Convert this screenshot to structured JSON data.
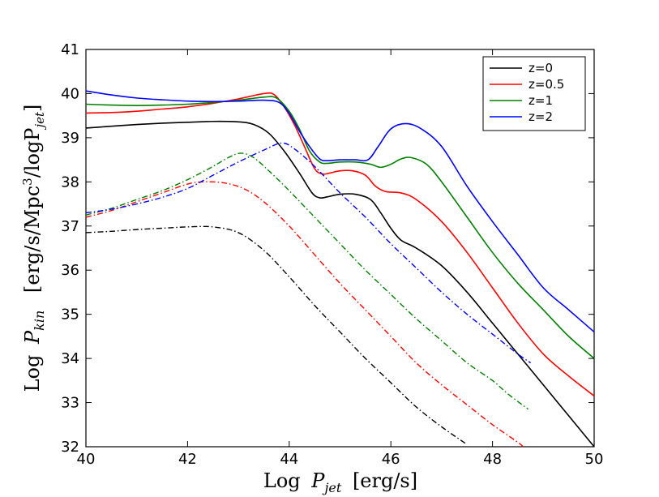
{
  "chart_data": {
    "type": "line",
    "title": "",
    "xlabel": {
      "prefix": "Log",
      "var": "P",
      "sub": "jet",
      "units": "[erg/s]"
    },
    "ylabel": {
      "prefix": "Log",
      "var": "P",
      "sub": "kin",
      "units_a": "[erg/s/Mpc",
      "sup": "3",
      "units_b": "/logP",
      "units_sub": "jet",
      "units_c": "]"
    },
    "xlim": [
      40,
      50
    ],
    "ylim": [
      32,
      41
    ],
    "xticks": [
      "40",
      "42",
      "44",
      "46",
      "48",
      "50"
    ],
    "yticks": [
      "32",
      "33",
      "34",
      "35",
      "36",
      "37",
      "38",
      "39",
      "40",
      "41"
    ],
    "legend_position": "top-right",
    "series": [
      {
        "name": "z=0",
        "color": "#000000",
        "style": "solid",
        "points": [
          [
            40,
            39.22
          ],
          [
            40.5,
            39.26
          ],
          [
            41,
            39.3
          ],
          [
            41.5,
            39.33
          ],
          [
            42,
            39.35
          ],
          [
            42.5,
            39.37
          ],
          [
            43,
            39.36
          ],
          [
            43.3,
            39.3
          ],
          [
            43.6,
            39.1
          ],
          [
            43.9,
            38.7
          ],
          [
            44.2,
            38.2
          ],
          [
            44.45,
            37.75
          ],
          [
            44.6,
            37.64
          ],
          [
            44.75,
            37.66
          ],
          [
            45,
            37.72
          ],
          [
            45.3,
            37.72
          ],
          [
            45.6,
            37.6
          ],
          [
            45.8,
            37.3
          ],
          [
            46,
            36.95
          ],
          [
            46.2,
            36.68
          ],
          [
            46.5,
            36.5
          ],
          [
            47,
            36.1
          ],
          [
            47.5,
            35.5
          ],
          [
            48,
            34.8
          ],
          [
            48.5,
            34.1
          ],
          [
            49,
            33.4
          ],
          [
            49.5,
            32.7
          ],
          [
            50,
            32.0
          ]
        ]
      },
      {
        "name": "z=0.5",
        "color": "#ff0000",
        "style": "solid",
        "points": [
          [
            40,
            39.56
          ],
          [
            40.5,
            39.57
          ],
          [
            41,
            39.6
          ],
          [
            41.5,
            39.65
          ],
          [
            42,
            39.7
          ],
          [
            42.5,
            39.78
          ],
          [
            43,
            39.88
          ],
          [
            43.5,
            40.0
          ],
          [
            43.7,
            39.98
          ],
          [
            43.9,
            39.7
          ],
          [
            44.1,
            39.3
          ],
          [
            44.3,
            38.8
          ],
          [
            44.5,
            38.3
          ],
          [
            44.65,
            38.18
          ],
          [
            44.8,
            38.2
          ],
          [
            45,
            38.25
          ],
          [
            45.25,
            38.25
          ],
          [
            45.5,
            38.15
          ],
          [
            45.7,
            37.9
          ],
          [
            45.9,
            37.78
          ],
          [
            46.2,
            37.75
          ],
          [
            46.5,
            37.6
          ],
          [
            47,
            37.1
          ],
          [
            47.5,
            36.4
          ],
          [
            48,
            35.6
          ],
          [
            48.5,
            34.8
          ],
          [
            49,
            34.1
          ],
          [
            49.5,
            33.6
          ],
          [
            50,
            33.15
          ]
        ]
      },
      {
        "name": "z=1",
        "color": "#008000",
        "style": "solid",
        "points": [
          [
            40,
            39.76
          ],
          [
            40.5,
            39.74
          ],
          [
            41,
            39.73
          ],
          [
            41.5,
            39.74
          ],
          [
            42,
            39.76
          ],
          [
            42.5,
            39.8
          ],
          [
            43,
            39.85
          ],
          [
            43.5,
            39.92
          ],
          [
            43.75,
            39.9
          ],
          [
            44,
            39.6
          ],
          [
            44.2,
            39.2
          ],
          [
            44.4,
            38.7
          ],
          [
            44.6,
            38.45
          ],
          [
            44.75,
            38.42
          ],
          [
            45,
            38.45
          ],
          [
            45.3,
            38.45
          ],
          [
            45.6,
            38.4
          ],
          [
            45.8,
            38.33
          ],
          [
            46,
            38.4
          ],
          [
            46.2,
            38.52
          ],
          [
            46.4,
            38.55
          ],
          [
            46.7,
            38.4
          ],
          [
            47,
            38.0
          ],
          [
            47.5,
            37.2
          ],
          [
            48,
            36.4
          ],
          [
            48.5,
            35.7
          ],
          [
            49,
            35.1
          ],
          [
            49.5,
            34.5
          ],
          [
            50,
            34.0
          ]
        ]
      },
      {
        "name": "z=2",
        "color": "#0000ff",
        "style": "solid",
        "points": [
          [
            40,
            40.06
          ],
          [
            40.5,
            39.97
          ],
          [
            41,
            39.9
          ],
          [
            41.5,
            39.86
          ],
          [
            42,
            39.83
          ],
          [
            42.5,
            39.82
          ],
          [
            43,
            39.83
          ],
          [
            43.5,
            39.85
          ],
          [
            43.8,
            39.8
          ],
          [
            44,
            39.55
          ],
          [
            44.2,
            39.15
          ],
          [
            44.4,
            38.8
          ],
          [
            44.6,
            38.52
          ],
          [
            44.75,
            38.48
          ],
          [
            45,
            38.5
          ],
          [
            45.3,
            38.5
          ],
          [
            45.55,
            38.5
          ],
          [
            45.75,
            38.8
          ],
          [
            46,
            39.2
          ],
          [
            46.3,
            39.32
          ],
          [
            46.6,
            39.2
          ],
          [
            47,
            38.8
          ],
          [
            47.5,
            37.9
          ],
          [
            48,
            37.1
          ],
          [
            48.5,
            36.35
          ],
          [
            49,
            35.6
          ],
          [
            49.5,
            35.1
          ],
          [
            50,
            34.6
          ]
        ]
      },
      {
        "name": "",
        "color": "#000000",
        "style": "dashdot",
        "points": [
          [
            40,
            36.85
          ],
          [
            40.5,
            36.88
          ],
          [
            41,
            36.92
          ],
          [
            41.5,
            36.95
          ],
          [
            42,
            36.98
          ],
          [
            42.5,
            36.98
          ],
          [
            43,
            36.85
          ],
          [
            43.5,
            36.45
          ],
          [
            44,
            35.85
          ],
          [
            44.5,
            35.2
          ],
          [
            45,
            34.6
          ],
          [
            45.5,
            34.0
          ],
          [
            46,
            33.45
          ],
          [
            46.5,
            32.9
          ],
          [
            47,
            32.45
          ],
          [
            47.5,
            32.05
          ]
        ]
      },
      {
        "name": "",
        "color": "#ff0000",
        "style": "dashdot",
        "points": [
          [
            40,
            37.2
          ],
          [
            40.5,
            37.35
          ],
          [
            41,
            37.55
          ],
          [
            41.5,
            37.75
          ],
          [
            42,
            37.95
          ],
          [
            42.3,
            38.0
          ],
          [
            42.7,
            37.98
          ],
          [
            43.1,
            37.85
          ],
          [
            43.5,
            37.55
          ],
          [
            44,
            37.0
          ],
          [
            44.5,
            36.35
          ],
          [
            45,
            35.7
          ],
          [
            45.5,
            35.1
          ],
          [
            46,
            34.5
          ],
          [
            46.5,
            33.9
          ],
          [
            47,
            33.4
          ],
          [
            47.5,
            32.95
          ],
          [
            48,
            32.5
          ],
          [
            48.5,
            32.1
          ],
          [
            48.6,
            32.0
          ]
        ]
      },
      {
        "name": "",
        "color": "#008000",
        "style": "dashdot",
        "points": [
          [
            40,
            37.25
          ],
          [
            40.5,
            37.4
          ],
          [
            41,
            37.6
          ],
          [
            41.5,
            37.8
          ],
          [
            42,
            38.05
          ],
          [
            42.5,
            38.35
          ],
          [
            42.8,
            38.55
          ],
          [
            43.05,
            38.65
          ],
          [
            43.3,
            38.55
          ],
          [
            43.6,
            38.25
          ],
          [
            44,
            37.8
          ],
          [
            44.5,
            37.2
          ],
          [
            45,
            36.6
          ],
          [
            45.5,
            36.0
          ],
          [
            46,
            35.45
          ],
          [
            46.5,
            34.9
          ],
          [
            47,
            34.4
          ],
          [
            47.5,
            33.9
          ],
          [
            48,
            33.5
          ],
          [
            48.3,
            33.2
          ],
          [
            48.7,
            32.85
          ]
        ]
      },
      {
        "name": "",
        "color": "#0000ff",
        "style": "dashdot",
        "points": [
          [
            40,
            37.3
          ],
          [
            40.5,
            37.38
          ],
          [
            41,
            37.5
          ],
          [
            41.5,
            37.65
          ],
          [
            42,
            37.85
          ],
          [
            42.5,
            38.15
          ],
          [
            43,
            38.45
          ],
          [
            43.5,
            38.72
          ],
          [
            43.85,
            38.88
          ],
          [
            44.1,
            38.75
          ],
          [
            44.5,
            38.35
          ],
          [
            45,
            37.75
          ],
          [
            45.5,
            37.2
          ],
          [
            46,
            36.6
          ],
          [
            46.5,
            36.05
          ],
          [
            47,
            35.5
          ],
          [
            47.5,
            35.0
          ],
          [
            48,
            34.55
          ],
          [
            48.5,
            34.1
          ],
          [
            48.75,
            33.9
          ]
        ]
      }
    ]
  }
}
